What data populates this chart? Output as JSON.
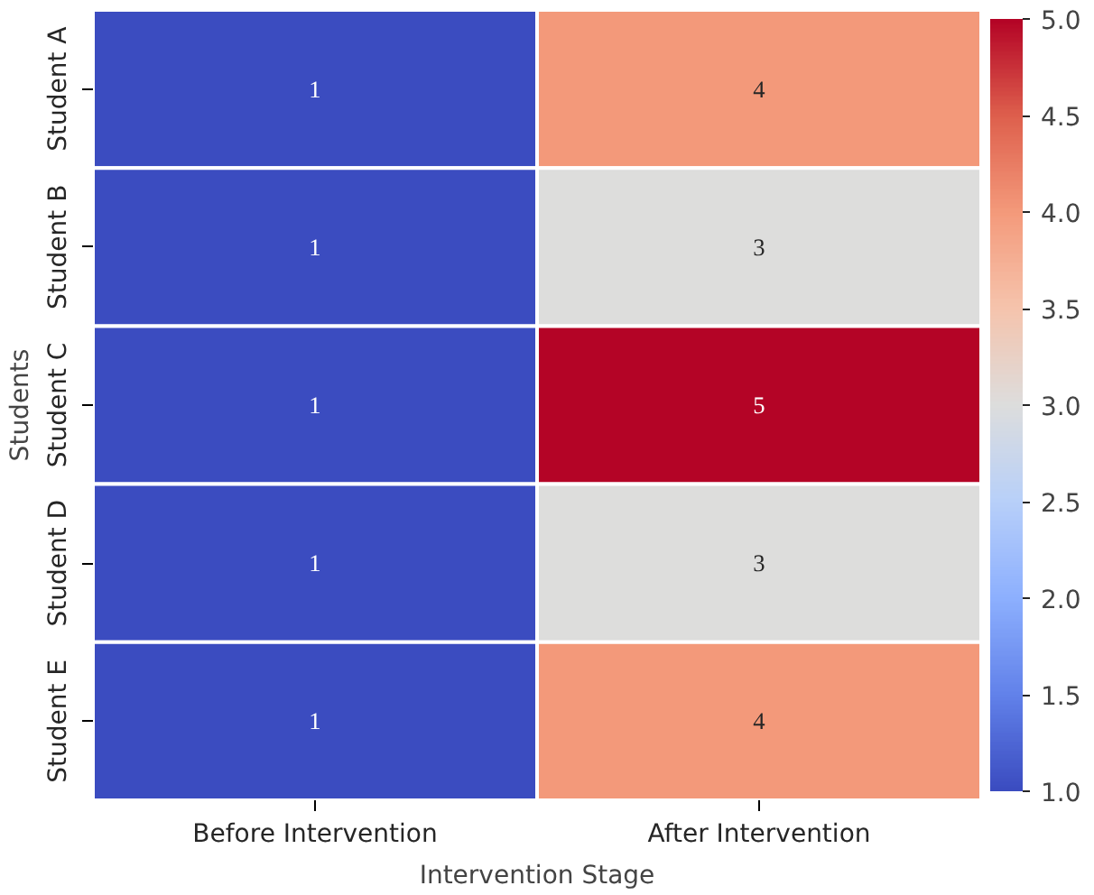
{
  "chart_data": {
    "type": "heatmap",
    "xlabel": "Intervention Stage",
    "ylabel": "Students",
    "categories": [
      "Before Intervention",
      "After Intervention"
    ],
    "y_categories": [
      "Student A",
      "Student B",
      "Student C",
      "Student D",
      "Student E"
    ],
    "cells": [
      [
        1,
        4
      ],
      [
        1,
        3
      ],
      [
        1,
        5
      ],
      [
        1,
        3
      ],
      [
        1,
        4
      ]
    ],
    "data_labels": true,
    "clim": [
      1.0,
      5.0
    ],
    "cticks": [
      {
        "value": 1.0,
        "label": "1.0"
      },
      {
        "value": 1.5,
        "label": "1.5"
      },
      {
        "value": 2.0,
        "label": "2.0"
      },
      {
        "value": 2.5,
        "label": "2.5"
      },
      {
        "value": 3.0,
        "label": "3.0"
      },
      {
        "value": 3.5,
        "label": "3.5"
      },
      {
        "value": 4.0,
        "label": "4.0"
      },
      {
        "value": 4.5,
        "label": "4.5"
      },
      {
        "value": 5.0,
        "label": "5.0"
      }
    ]
  }
}
